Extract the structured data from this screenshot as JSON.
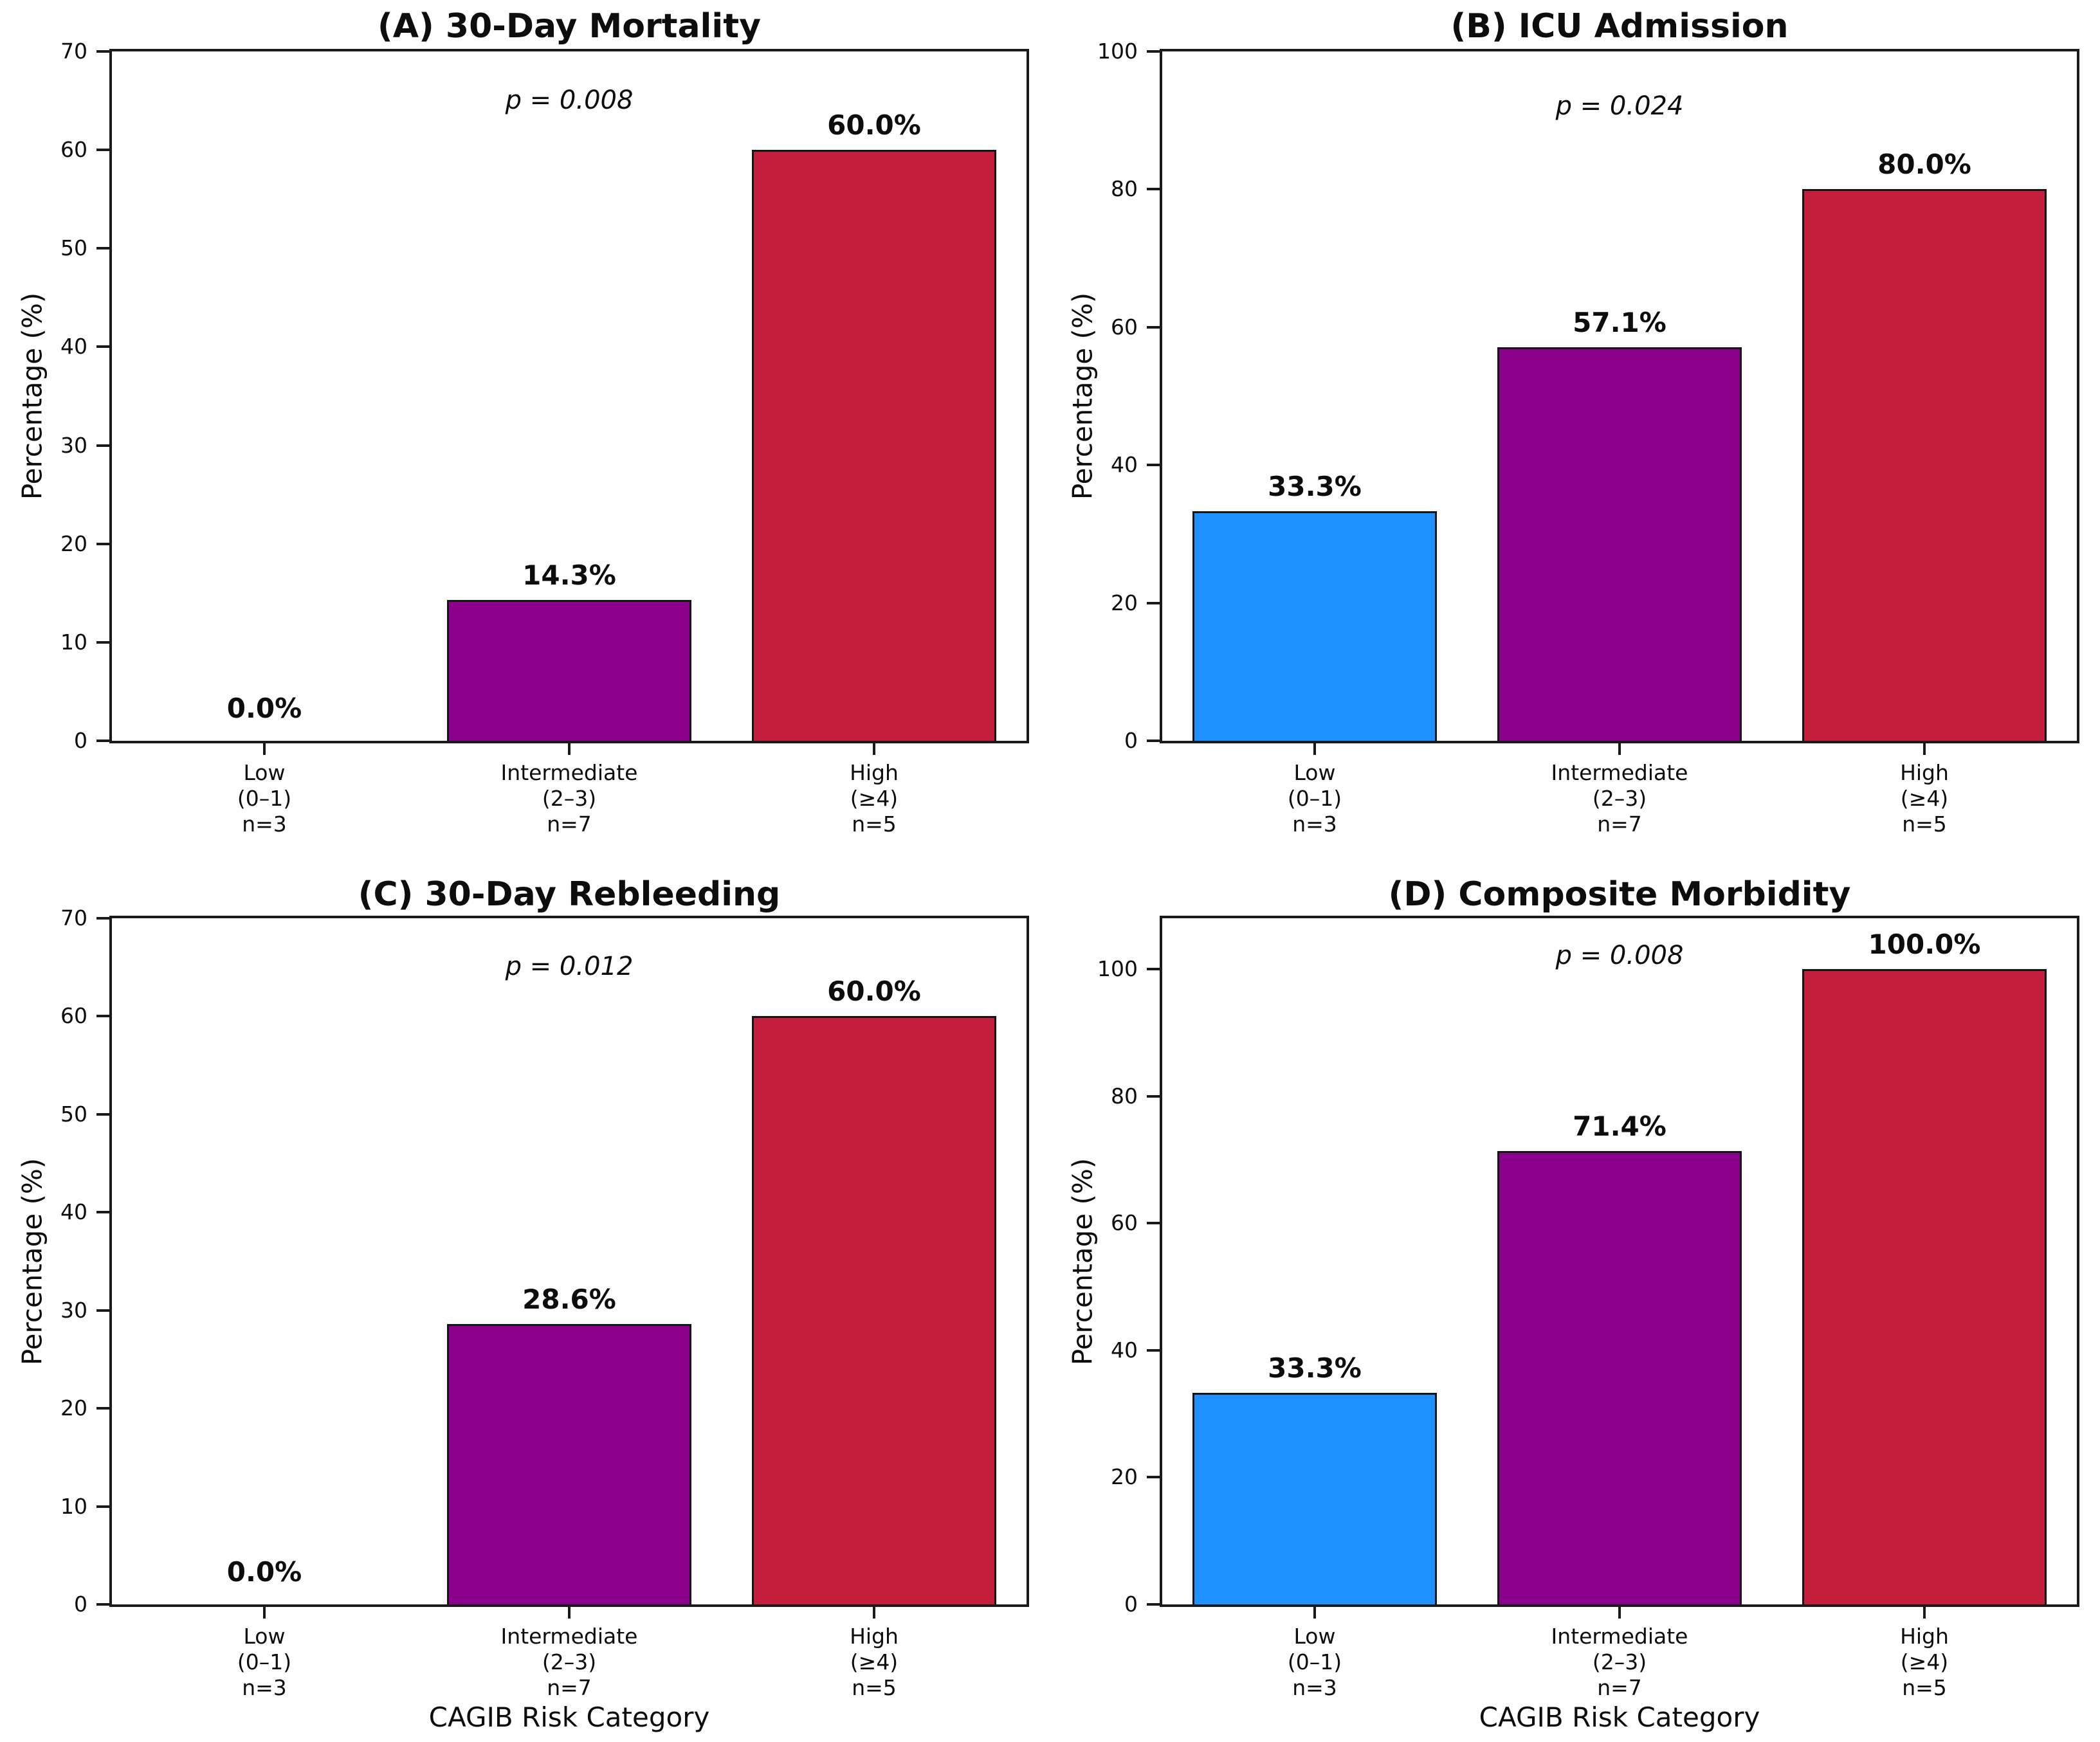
{
  "figure": {
    "background": "#ffffff",
    "frame_color": "#1a1a1a",
    "text_color": "#0d0d0d"
  },
  "chart_data": [
    {
      "panel_id": "A",
      "type": "bar",
      "title": "(A) 30-Day Mortality",
      "p_annotation": {
        "text": "p = 0.008",
        "y": 65
      },
      "ylabel": "Percentage (%)",
      "xlabel": "",
      "ylim": [
        0,
        70
      ],
      "yticks": [
        0,
        10,
        20,
        30,
        40,
        50,
        60,
        70
      ],
      "categories": [
        [
          "Low",
          "(0–1)",
          "n=3"
        ],
        [
          "Intermediate",
          "(2–3)",
          "n=7"
        ],
        [
          "High",
          "(≥4)",
          "n=5"
        ]
      ],
      "values": [
        0.0,
        14.3,
        60.0
      ],
      "value_labels": [
        "0.0%",
        "14.3%",
        "60.0%"
      ],
      "bar_colors": [
        "#1E90FF",
        "#8B008B",
        "#C41E3C"
      ],
      "bar_width_fraction": 0.8,
      "grid": false,
      "legend": null
    },
    {
      "panel_id": "B",
      "type": "bar",
      "title": "(B) ICU Admission",
      "p_annotation": {
        "text": "p = 0.024",
        "y": 92
      },
      "ylabel": "Percentage (%)",
      "xlabel": "",
      "ylim": [
        0,
        100
      ],
      "yticks": [
        0,
        20,
        40,
        60,
        80,
        100
      ],
      "categories": [
        [
          "Low",
          "(0–1)",
          "n=3"
        ],
        [
          "Intermediate",
          "(2–3)",
          "n=7"
        ],
        [
          "High",
          "(≥4)",
          "n=5"
        ]
      ],
      "values": [
        33.3,
        57.1,
        80.0
      ],
      "value_labels": [
        "33.3%",
        "57.1%",
        "80.0%"
      ],
      "bar_colors": [
        "#1E90FF",
        "#8B008B",
        "#C41E3C"
      ],
      "bar_width_fraction": 0.8,
      "grid": false,
      "legend": null
    },
    {
      "panel_id": "C",
      "type": "bar",
      "title": "(C) 30-Day Rebleeding",
      "p_annotation": {
        "text": "p = 0.012",
        "y": 65
      },
      "ylabel": "Percentage (%)",
      "xlabel": "CAGIB Risk Category",
      "ylim": [
        0,
        70
      ],
      "yticks": [
        0,
        10,
        20,
        30,
        40,
        50,
        60,
        70
      ],
      "categories": [
        [
          "Low",
          "(0–1)",
          "n=3"
        ],
        [
          "Intermediate",
          "(2–3)",
          "n=7"
        ],
        [
          "High",
          "(≥4)",
          "n=5"
        ]
      ],
      "values": [
        0.0,
        28.6,
        60.0
      ],
      "value_labels": [
        "0.0%",
        "28.6%",
        "60.0%"
      ],
      "bar_colors": [
        "#1E90FF",
        "#8B008B",
        "#C41E3C"
      ],
      "bar_width_fraction": 0.8,
      "grid": false,
      "legend": null
    },
    {
      "panel_id": "D",
      "type": "bar",
      "title": "(D) Composite Morbidity",
      "p_annotation": {
        "text": "p = 0.008",
        "y": 102
      },
      "ylabel": "Percentage (%)",
      "xlabel": "CAGIB Risk Category",
      "ylim": [
        0,
        108
      ],
      "yticks": [
        0,
        20,
        40,
        60,
        80,
        100
      ],
      "categories": [
        [
          "Low",
          "(0–1)",
          "n=3"
        ],
        [
          "Intermediate",
          "(2–3)",
          "n=7"
        ],
        [
          "High",
          "(≥4)",
          "n=5"
        ]
      ],
      "values": [
        33.3,
        71.4,
        100.0
      ],
      "value_labels": [
        "33.3%",
        "71.4%",
        "100.0%"
      ],
      "bar_colors": [
        "#1E90FF",
        "#8B008B",
        "#C41E3C"
      ],
      "bar_width_fraction": 0.8,
      "grid": false,
      "legend": null
    }
  ]
}
